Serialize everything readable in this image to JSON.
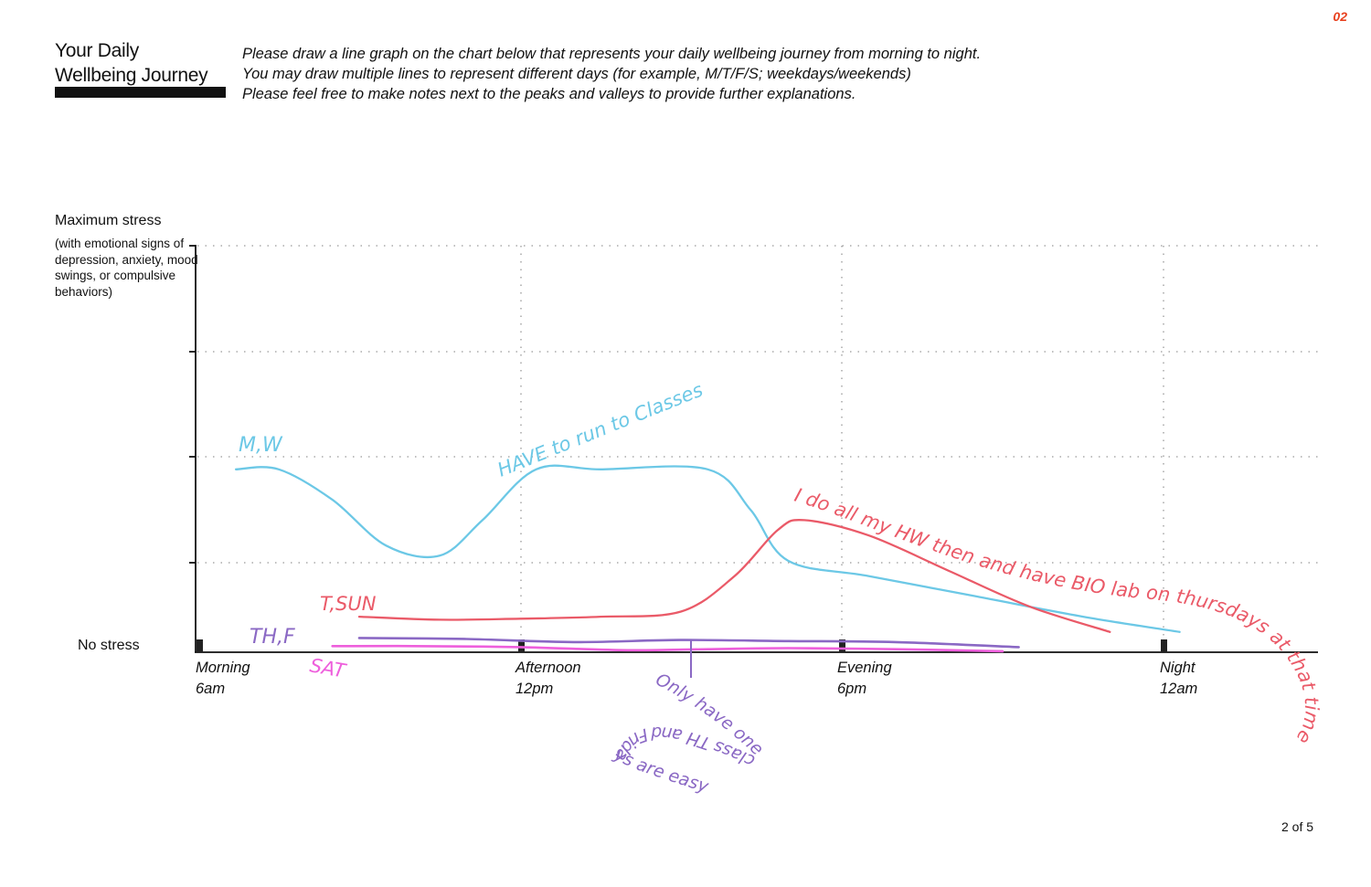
{
  "header": {
    "title_line1": "Your Daily",
    "title_line2": "Wellbeing Journey",
    "instructions": [
      "Please draw a line graph on the chart below that represents your daily wellbeing journey from morning to night.",
      "You may draw multiple lines to represent different days (for example, M/T/F/S; weekdays/weekends)",
      "Please feel free to make notes next to the peaks and valleys to provide further explanations."
    ],
    "page_mark": "02"
  },
  "footer": {
    "page_number": "2 of 5"
  },
  "chart_data": {
    "type": "line",
    "ylabel": "Maximum stress",
    "ylabel_sub": "(with emotional signs of depression, anxiety, mood swings, or compulsive behaviors)",
    "ymin_label": "No stress",
    "ylim": [
      0,
      4
    ],
    "x_ticks": [
      {
        "line1": "Morning",
        "line2": "6am",
        "hour": 6
      },
      {
        "line1": "Afternoon",
        "line2": "12pm",
        "hour": 12
      },
      {
        "line1": "Evening",
        "line2": "6pm",
        "hour": 18
      },
      {
        "line1": "Night",
        "line2": "12am",
        "hour": 24
      }
    ],
    "xlim": [
      6,
      24.5
    ],
    "grid": true,
    "series": [
      {
        "name": "M,W",
        "color": "#6cc8e6",
        "points": [
          [
            6.7,
            1.8
          ],
          [
            7.5,
            1.8
          ],
          [
            8.5,
            1.5
          ],
          [
            9.5,
            1.05
          ],
          [
            10.5,
            0.95
          ],
          [
            11.3,
            1.3
          ],
          [
            12.3,
            1.8
          ],
          [
            13.5,
            1.8
          ],
          [
            15.5,
            1.8
          ],
          [
            16.3,
            1.4
          ],
          [
            17,
            0.9
          ],
          [
            18.5,
            0.75
          ],
          [
            20.5,
            0.55
          ],
          [
            22.5,
            0.35
          ],
          [
            24.3,
            0.2
          ]
        ],
        "annotation": "HAVE to run to Classes"
      },
      {
        "name": "T,SUN",
        "color": "#ea5a68",
        "points": [
          [
            9,
            0.35
          ],
          [
            10.5,
            0.32
          ],
          [
            12,
            0.33
          ],
          [
            13.5,
            0.35
          ],
          [
            15,
            0.4
          ],
          [
            16,
            0.75
          ],
          [
            16.8,
            1.2
          ],
          [
            17.3,
            1.3
          ],
          [
            18.5,
            1.15
          ],
          [
            20,
            0.8
          ],
          [
            21.5,
            0.45
          ],
          [
            23,
            0.2
          ]
        ],
        "annotation": "I do all my HW then and have BIO lab on thursdays at that time"
      },
      {
        "name": "TH,F",
        "color": "#8a68c4",
        "points": [
          [
            9,
            0.14
          ],
          [
            11,
            0.13
          ],
          [
            13,
            0.1
          ],
          [
            15,
            0.12
          ],
          [
            17,
            0.11
          ],
          [
            19,
            0.1
          ],
          [
            21.3,
            0.05
          ]
        ],
        "annotation": "Only have one class TH and Fridays are easy"
      },
      {
        "name": "SAT",
        "color": "#ee5fdc",
        "points": [
          [
            8.5,
            0.06
          ],
          [
            10,
            0.06
          ],
          [
            12,
            0.05
          ],
          [
            14,
            0.02
          ],
          [
            15.5,
            0.03
          ],
          [
            17,
            0.04
          ],
          [
            19,
            0.03
          ],
          [
            21,
            0.01
          ]
        ]
      }
    ]
  }
}
